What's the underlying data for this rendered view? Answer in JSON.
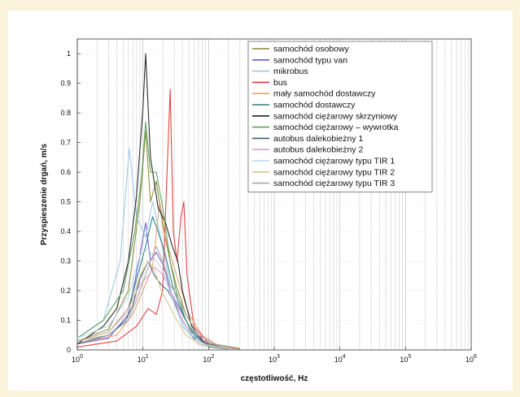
{
  "chart_data": {
    "type": "line",
    "xscale": "log",
    "xlim": [
      1,
      1000000
    ],
    "ylim": [
      0,
      1.05
    ],
    "grid": true,
    "xlabel": "częstotliwość, Hz",
    "ylabel": "Przyspieszenie drgań, m/s",
    "xticks": [
      {
        "value": 1,
        "base": "10",
        "exp": "0"
      },
      {
        "value": 10,
        "base": "10",
        "exp": "1"
      },
      {
        "value": 100,
        "base": "10",
        "exp": "2"
      },
      {
        "value": 1000,
        "base": "10",
        "exp": "3"
      },
      {
        "value": 10000,
        "base": "10",
        "exp": "4"
      },
      {
        "value": 100000,
        "base": "10",
        "exp": "5"
      },
      {
        "value": 1000000,
        "base": "10",
        "exp": "6"
      }
    ],
    "yticks": [
      {
        "value": 0,
        "label": "0"
      },
      {
        "value": 0.1,
        "label": "0.1"
      },
      {
        "value": 0.2,
        "label": "0.2"
      },
      {
        "value": 0.3,
        "label": "0.3"
      },
      {
        "value": 0.4,
        "label": "0.4"
      },
      {
        "value": 0.5,
        "label": "0.5"
      },
      {
        "value": 0.6,
        "label": "0.6"
      },
      {
        "value": 0.7,
        "label": "0.7"
      },
      {
        "value": 0.8,
        "label": "0.8"
      },
      {
        "value": 0.9,
        "label": "0.9"
      },
      {
        "value": 1,
        "label": "1"
      }
    ],
    "legend_position": "top-right",
    "series": [
      {
        "name": "samochód osobowy",
        "color": "#8a8a3a",
        "points": [
          [
            1,
            0.03
          ],
          [
            3,
            0.07
          ],
          [
            6,
            0.2
          ],
          [
            9,
            0.5
          ],
          [
            11,
            0.74
          ],
          [
            13,
            0.5
          ],
          [
            16,
            0.57
          ],
          [
            20,
            0.42
          ],
          [
            26,
            0.3
          ],
          [
            32,
            0.22
          ],
          [
            45,
            0.12
          ],
          [
            70,
            0.05
          ],
          [
            120,
            0.02
          ],
          [
            300,
            0.005
          ]
        ]
      },
      {
        "name": "samochód typu van",
        "color": "#6a5acd",
        "points": [
          [
            1,
            0.02
          ],
          [
            3,
            0.04
          ],
          [
            6,
            0.12
          ],
          [
            9,
            0.32
          ],
          [
            11,
            0.43
          ],
          [
            13,
            0.3
          ],
          [
            16,
            0.33
          ],
          [
            21,
            0.28
          ],
          [
            26,
            0.2
          ],
          [
            34,
            0.15
          ],
          [
            50,
            0.08
          ],
          [
            80,
            0.03
          ],
          [
            150,
            0.01
          ],
          [
            300,
            0.003
          ]
        ]
      },
      {
        "name": "mikrobus",
        "color": "#9ec6e6",
        "points": [
          [
            1,
            0.04
          ],
          [
            2.5,
            0.1
          ],
          [
            4.5,
            0.3
          ],
          [
            6.2,
            0.68
          ],
          [
            8,
            0.45
          ],
          [
            11,
            0.38
          ],
          [
            14,
            0.5
          ],
          [
            17,
            0.42
          ],
          [
            22,
            0.3
          ],
          [
            28,
            0.18
          ],
          [
            40,
            0.08
          ],
          [
            70,
            0.02
          ],
          [
            150,
            0.005
          ]
        ]
      },
      {
        "name": "bus",
        "color": "#e03a3a",
        "points": [
          [
            1,
            0.01
          ],
          [
            4,
            0.03
          ],
          [
            8,
            0.08
          ],
          [
            12,
            0.14
          ],
          [
            16,
            0.12
          ],
          [
            20,
            0.2
          ],
          [
            26,
            0.88
          ],
          [
            29,
            0.4
          ],
          [
            33,
            0.3
          ],
          [
            38,
            0.45
          ],
          [
            42,
            0.5
          ],
          [
            47,
            0.25
          ],
          [
            60,
            0.08
          ],
          [
            100,
            0.02
          ],
          [
            200,
            0.005
          ]
        ]
      },
      {
        "name": "mały samochód dostawczy",
        "color": "#e8a070",
        "points": [
          [
            1,
            0.02
          ],
          [
            4,
            0.05
          ],
          [
            7,
            0.12
          ],
          [
            10,
            0.2
          ],
          [
            14,
            0.28
          ],
          [
            18,
            0.5
          ],
          [
            22,
            0.38
          ],
          [
            28,
            0.3
          ],
          [
            36,
            0.22
          ],
          [
            50,
            0.12
          ],
          [
            80,
            0.05
          ],
          [
            150,
            0.01
          ],
          [
            300,
            0.003
          ]
        ]
      },
      {
        "name": "samochód dostawczy",
        "color": "#2e7d7d",
        "points": [
          [
            1,
            0.03
          ],
          [
            3,
            0.06
          ],
          [
            6,
            0.14
          ],
          [
            9,
            0.28
          ],
          [
            11,
            0.35
          ],
          [
            14,
            0.45
          ],
          [
            17,
            0.4
          ],
          [
            22,
            0.32
          ],
          [
            28,
            0.22
          ],
          [
            36,
            0.15
          ],
          [
            55,
            0.06
          ],
          [
            100,
            0.01
          ],
          [
            200,
            0.003
          ]
        ]
      },
      {
        "name": "samochód ciężarowy skrzyniowy",
        "color": "#222222",
        "points": [
          [
            1,
            0.02
          ],
          [
            2.5,
            0.08
          ],
          [
            4,
            0.14
          ],
          [
            6,
            0.3
          ],
          [
            8,
            0.52
          ],
          [
            10,
            0.82
          ],
          [
            11,
            1.0
          ],
          [
            13,
            0.65
          ],
          [
            17,
            0.48
          ],
          [
            22,
            0.43
          ],
          [
            28,
            0.35
          ],
          [
            34,
            0.3
          ],
          [
            40,
            0.2
          ],
          [
            55,
            0.08
          ],
          [
            90,
            0.02
          ],
          [
            200,
            0.005
          ]
        ]
      },
      {
        "name": "samochód ciężarowy – wywrotka",
        "color": "#5aa05a",
        "points": [
          [
            1,
            0.04
          ],
          [
            2.5,
            0.1
          ],
          [
            5,
            0.2
          ],
          [
            7.5,
            0.4
          ],
          [
            9.5,
            0.58
          ],
          [
            11,
            0.77
          ],
          [
            13,
            0.6
          ],
          [
            16,
            0.6
          ],
          [
            20,
            0.48
          ],
          [
            26,
            0.3
          ],
          [
            32,
            0.2
          ],
          [
            45,
            0.1
          ],
          [
            70,
            0.03
          ],
          [
            150,
            0.008
          ]
        ]
      },
      {
        "name": "autobus dalekobieżny 1",
        "color": "#3b5f7a",
        "points": [
          [
            1,
            0.02
          ],
          [
            3,
            0.05
          ],
          [
            5.5,
            0.1
          ],
          [
            7,
            0.15
          ],
          [
            9,
            0.24
          ],
          [
            12,
            0.3
          ],
          [
            15,
            0.25
          ],
          [
            19,
            0.22
          ],
          [
            24,
            0.2
          ],
          [
            30,
            0.16
          ],
          [
            40,
            0.1
          ],
          [
            60,
            0.04
          ],
          [
            100,
            0.015
          ],
          [
            200,
            0.004
          ]
        ]
      },
      {
        "name": "autobus dalekobieżny 2",
        "color": "#d9a0d0",
        "points": [
          [
            1,
            0.03
          ],
          [
            3,
            0.06
          ],
          [
            6,
            0.14
          ],
          [
            9,
            0.22
          ],
          [
            12,
            0.25
          ],
          [
            15,
            0.28
          ],
          [
            19,
            0.26
          ],
          [
            24,
            0.22
          ],
          [
            30,
            0.17
          ],
          [
            38,
            0.11
          ],
          [
            55,
            0.05
          ],
          [
            100,
            0.012
          ],
          [
            250,
            0.003
          ]
        ]
      },
      {
        "name": "samochód ciężarowy typu TIR 1",
        "color": "#b8d8e8",
        "points": [
          [
            1,
            0.04
          ],
          [
            3,
            0.08
          ],
          [
            6,
            0.18
          ],
          [
            9,
            0.32
          ],
          [
            12,
            0.34
          ],
          [
            16,
            0.3
          ],
          [
            20,
            0.27
          ],
          [
            25,
            0.2
          ],
          [
            32,
            0.14
          ],
          [
            45,
            0.07
          ],
          [
            80,
            0.02
          ],
          [
            200,
            0.005
          ]
        ]
      },
      {
        "name": "samochód ciężarowy typu TIR 2",
        "color": "#d4c48a",
        "points": [
          [
            1,
            0.03
          ],
          [
            3,
            0.06
          ],
          [
            6,
            0.13
          ],
          [
            9,
            0.25
          ],
          [
            12,
            0.3
          ],
          [
            15,
            0.27
          ],
          [
            19,
            0.2
          ],
          [
            25,
            0.15
          ],
          [
            33,
            0.1
          ],
          [
            45,
            0.05
          ],
          [
            80,
            0.015
          ],
          [
            200,
            0.004
          ]
        ]
      },
      {
        "name": "samochód ciężarowy typu TIR 3",
        "color": "#a8a8a8",
        "points": [
          [
            1,
            0.03
          ],
          [
            3,
            0.05
          ],
          [
            6,
            0.1
          ],
          [
            9,
            0.2
          ],
          [
            12,
            0.28
          ],
          [
            16,
            0.35
          ],
          [
            20,
            0.3
          ],
          [
            26,
            0.22
          ],
          [
            34,
            0.18
          ],
          [
            45,
            0.12
          ],
          [
            70,
            0.05
          ],
          [
            120,
            0.02
          ],
          [
            250,
            0.005
          ]
        ]
      }
    ]
  }
}
